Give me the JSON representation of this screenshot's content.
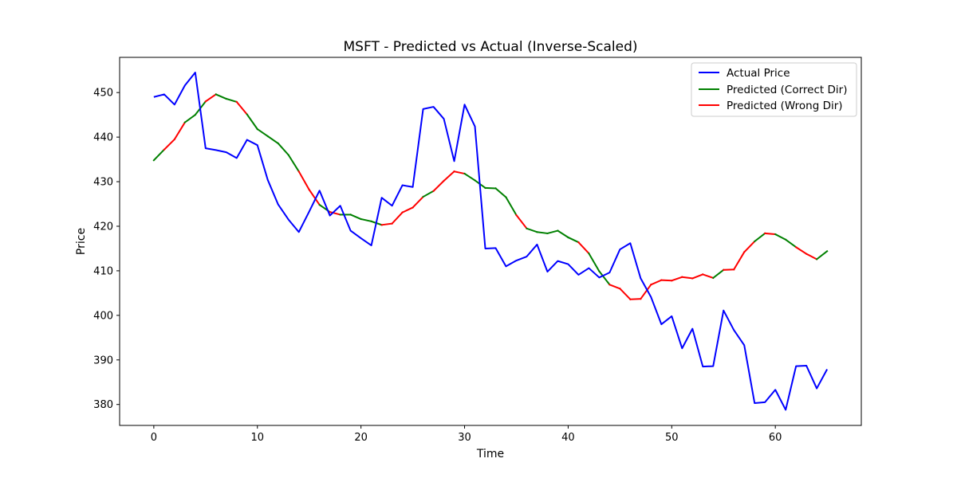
{
  "chart_data": {
    "type": "line",
    "title": "MSFT - Predicted vs Actual (Inverse-Scaled)",
    "xlabel": "Time",
    "ylabel": "Price",
    "xlim": [
      -3.3,
      68.3
    ],
    "ylim": [
      375.3,
      457.9
    ],
    "xticks": [
      0,
      10,
      20,
      30,
      40,
      50,
      60
    ],
    "yticks": [
      380,
      390,
      400,
      410,
      420,
      430,
      440,
      450
    ],
    "grid": false,
    "legend_position": "top-right",
    "colors": {
      "actual": "#0000ff",
      "correct": "#008000",
      "wrong": "#ff0000"
    },
    "series": [
      {
        "name": "Actual Price",
        "color": "#0000ff",
        "x": [
          0,
          1,
          2,
          3,
          4,
          5,
          6,
          7,
          8,
          9,
          10,
          11,
          12,
          13,
          14,
          15,
          16,
          17,
          18,
          19,
          20,
          21,
          22,
          23,
          24,
          25,
          26,
          27,
          28,
          29,
          30,
          31,
          32,
          33,
          34,
          35,
          36,
          37,
          38,
          39,
          40,
          41,
          42,
          43,
          44,
          45,
          46,
          47,
          48,
          49,
          50,
          51,
          52,
          53,
          54,
          55,
          56,
          57,
          58,
          59,
          60,
          61,
          62,
          63,
          64,
          65
        ],
        "values": [
          449.0,
          449.6,
          447.3,
          451.6,
          454.5,
          437.5,
          437.1,
          436.6,
          435.3,
          439.4,
          438.2,
          430.4,
          424.9,
          421.5,
          418.7,
          423.3,
          428.0,
          422.4,
          424.6,
          419.0,
          417.3,
          415.7,
          426.4,
          424.6,
          429.2,
          428.8,
          446.3,
          446.8,
          444.1,
          434.6,
          447.3,
          442.4,
          415.0,
          415.1,
          411.0,
          412.3,
          413.2,
          415.9,
          409.8,
          412.2,
          411.5,
          409.1,
          410.6,
          408.5,
          409.6,
          414.8,
          416.2,
          408.3,
          404.1,
          398.0,
          399.8,
          392.6,
          397.0,
          388.5,
          388.6,
          401.1,
          396.7,
          393.3,
          380.3,
          380.5,
          383.3,
          378.8,
          388.6,
          388.7,
          383.6,
          387.9
        ]
      },
      {
        "name": "Predicted (Correct Dir)",
        "color": "#008000",
        "x": [
          0,
          1,
          2,
          3,
          4,
          5,
          6,
          7,
          8,
          9,
          10,
          11,
          12,
          13,
          14,
          15,
          16,
          17,
          18,
          19,
          20,
          21,
          22,
          23,
          24,
          25,
          26,
          27,
          28,
          29,
          30,
          31,
          32,
          33,
          34,
          35,
          36,
          37,
          38,
          39,
          40,
          41,
          42,
          43,
          44,
          45,
          46,
          47,
          48,
          49,
          50,
          51,
          52,
          53,
          54,
          55,
          56,
          57,
          58,
          59,
          60,
          61,
          62,
          63,
          64,
          65
        ],
        "values": [
          434.8,
          437.2,
          439.5,
          443.3,
          445.0,
          448.0,
          449.6,
          448.6,
          447.9,
          445.1,
          441.8,
          440.2,
          438.6,
          436.0,
          432.3,
          428.2,
          424.8,
          423.2,
          422.6,
          422.6,
          421.6,
          421.1,
          420.3,
          420.6,
          423.1,
          424.2,
          426.6,
          427.9,
          430.2,
          432.3,
          431.8,
          430.3,
          428.6,
          428.5,
          426.5,
          422.5,
          419.5,
          418.7,
          418.4,
          419.0,
          417.5,
          416.4,
          413.9,
          409.9,
          406.9,
          406.0,
          403.6,
          403.7,
          406.9,
          407.9,
          407.8,
          408.6,
          408.3,
          409.2,
          408.4,
          410.2,
          410.3,
          414.2,
          416.6,
          418.4,
          418.2,
          417.0,
          415.3,
          413.8,
          412.6,
          414.4
        ],
        "correct_direction": [
          true,
          false,
          false,
          true,
          true,
          false,
          true,
          true,
          false,
          true,
          true,
          true,
          true,
          true,
          false,
          false,
          true,
          false,
          true,
          true,
          true,
          true,
          false,
          false,
          false,
          false,
          true,
          false,
          false,
          false,
          true,
          true,
          true,
          true,
          true,
          false,
          true,
          true,
          true,
          true,
          true,
          false,
          true,
          true,
          false,
          false,
          false,
          false,
          false,
          false,
          false,
          false,
          false,
          false,
          true,
          false,
          false,
          false,
          true,
          false,
          true,
          true,
          false,
          false,
          true,
          true
        ]
      },
      {
        "name": "Predicted (Wrong Dir)",
        "color": "#ff0000"
      }
    ]
  }
}
